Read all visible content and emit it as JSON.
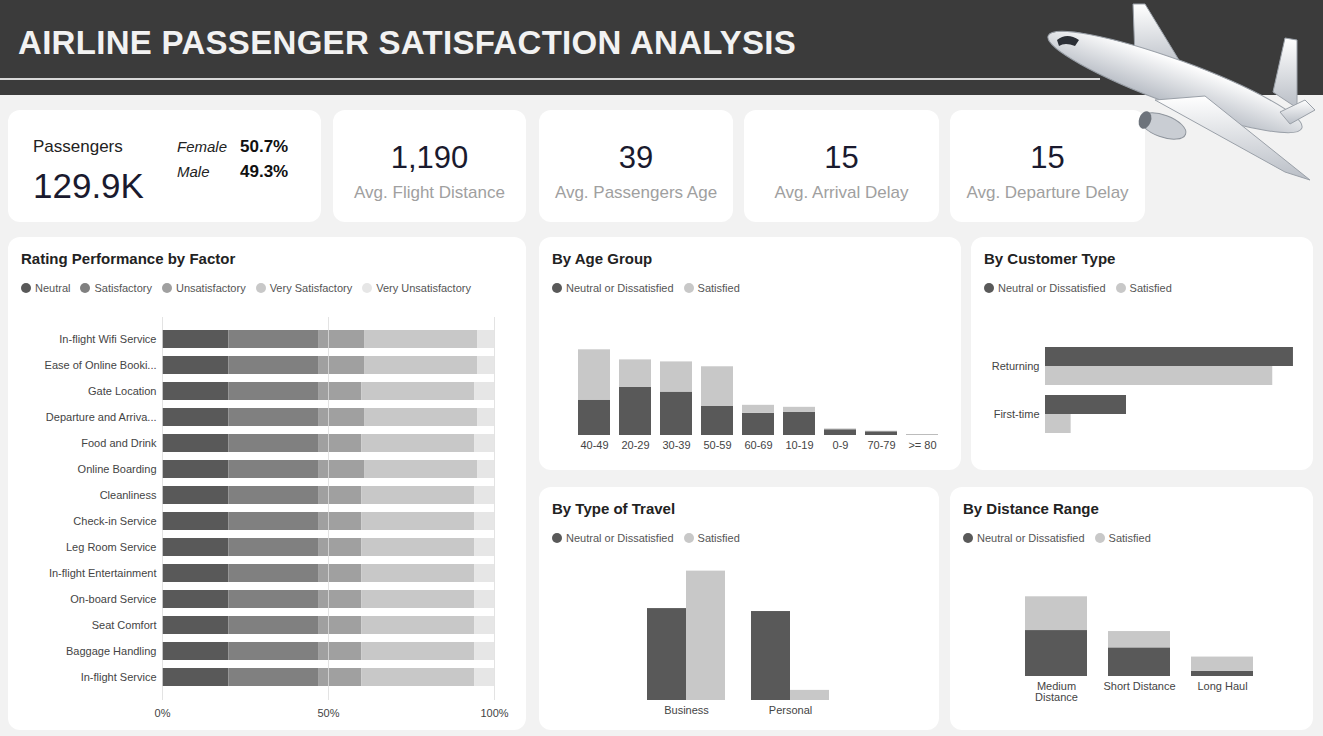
{
  "header": {
    "title": "AIRLINE PASSENGER SATISFACTION ANALYSIS"
  },
  "kpis": [
    {
      "label": "Passengers",
      "value": "129.9K",
      "breakdown": [
        {
          "label": "Female",
          "value": "50.7%"
        },
        {
          "label": "Male",
          "value": "49.3%"
        }
      ]
    },
    {
      "label": "Avg. Flight Distance",
      "value": "1,190"
    },
    {
      "label": "Avg. Passengers Age",
      "value": "39"
    },
    {
      "label": "Avg. Arrival Delay",
      "value": "15"
    },
    {
      "label": "Avg. Departure Delay",
      "value": "15"
    }
  ],
  "chart_data": [
    {
      "type": "bar",
      "title": "Rating Performance by Factor",
      "orientation": "horizontal",
      "stacked": true,
      "categories": [
        "In-flight Wifi Service",
        "Ease of Online Booki...",
        "Gate Location",
        "Departure and Arriva...",
        "Food and Drink",
        "Online Boarding",
        "Cleanliness",
        "Check-in Service",
        "Leg Room Service",
        "In-flight Entertainment",
        "On-board Service",
        "Seat Comfort",
        "Baggage Handling",
        "In-flight Service"
      ],
      "series": [
        {
          "name": "Neutral",
          "color": "#595959",
          "values": [
            20,
            20,
            20,
            20,
            20,
            20,
            20,
            20,
            20,
            20,
            20,
            20,
            20,
            20
          ]
        },
        {
          "name": "Satisfactory",
          "color": "#808080",
          "values": [
            27,
            27,
            27,
            27,
            27,
            27,
            27,
            27,
            27,
            27,
            27,
            27,
            27,
            27
          ]
        },
        {
          "name": "Unsatisfactory",
          "color": "#a0a0a0",
          "values": [
            14,
            14,
            13,
            14,
            13,
            14,
            13,
            13,
            13,
            13,
            13,
            13,
            13,
            13
          ]
        },
        {
          "name": "Very Satisfactory",
          "color": "#c8c8c8",
          "values": [
            34,
            34,
            34,
            34,
            34,
            34,
            34,
            34,
            34,
            34,
            34,
            34,
            34,
            34
          ]
        },
        {
          "name": "Very Unsatisfactory",
          "color": "#e6e6e6",
          "values": [
            5,
            5,
            6,
            5,
            6,
            5,
            6,
            6,
            6,
            6,
            6,
            6,
            6,
            6
          ]
        }
      ],
      "xlim": [
        0,
        100
      ],
      "xticks": [
        {
          "value": 0,
          "label": "0%"
        },
        {
          "value": 50,
          "label": "50%"
        },
        {
          "value": 100,
          "label": "100%"
        }
      ],
      "grid": true,
      "legend": "top-left"
    },
    {
      "type": "bar",
      "title": "By Age Group",
      "stacked": true,
      "categories": [
        "40-49",
        "20-29",
        "30-39",
        "50-59",
        "60-69",
        "10-19",
        "0-9",
        "70-79",
        ">= 80"
      ],
      "series": [
        {
          "name": "Neutral or Dissatisfied",
          "color": "#595959",
          "values": [
            12300,
            16800,
            15100,
            10200,
            7700,
            8100,
            2000,
            1300,
            150
          ]
        },
        {
          "name": "Satisfied",
          "color": "#c8c8c8",
          "values": [
            17500,
            9500,
            10500,
            13700,
            2800,
            1700,
            300,
            200,
            100
          ]
        }
      ],
      "ylim": [
        0,
        40000
      ],
      "tick_labels": "x",
      "legend": "top-left"
    },
    {
      "type": "bar",
      "title": "By Customer Type",
      "orientation": "horizontal",
      "stacked": false,
      "categories": [
        "Returning",
        "First-time"
      ],
      "series": [
        {
          "name": "Neutral or Dissatisfied",
          "color": "#595959",
          "values": [
            55100,
            18000
          ]
        },
        {
          "name": "Satisfied",
          "color": "#c8c8c8",
          "values": [
            50500,
            5700
          ]
        }
      ],
      "xlim": [
        0,
        56000
      ],
      "tick_labels": "y",
      "legend": "top-left"
    },
    {
      "type": "bar",
      "title": "By Type of Travel",
      "stacked": false,
      "categories": [
        "Business",
        "Personal"
      ],
      "series": [
        {
          "name": "Neutral or Dissatisfied",
          "color": "#595959",
          "values": [
            37300,
            36100
          ]
        },
        {
          "name": "Satisfied",
          "color": "#c8c8c8",
          "values": [
            52500,
            4100
          ]
        }
      ],
      "ylim": [
        0,
        56000
      ],
      "tick_labels": "x",
      "legend": "top-left"
    },
    {
      "type": "bar",
      "title": "By Distance Range",
      "stacked": true,
      "categories": [
        "Medium Distance",
        "Short Distance",
        "Long Haul"
      ],
      "series": [
        {
          "name": "Neutral or Dissatisfied",
          "color": "#595959",
          "values": [
            41400,
            25800,
            4600
          ]
        },
        {
          "name": "Satisfied",
          "color": "#c8c8c8",
          "values": [
            30400,
            14700,
            12900
          ]
        }
      ],
      "ylim": [
        0,
        100000
      ],
      "tick_labels": "x",
      "legend": "top-left"
    }
  ]
}
